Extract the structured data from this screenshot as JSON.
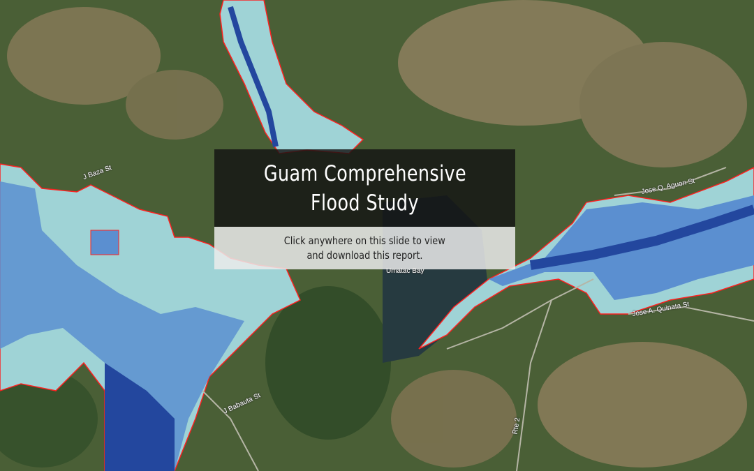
{
  "slide": {
    "title_lines": [
      "Guam Comprehensive",
      "Flood Study"
    ],
    "subtitle_lines": [
      "Click anywhere on this slide to view",
      "and download this report."
    ]
  },
  "map": {
    "labels": {
      "j_baza": "J Baza St",
      "j_babauta": "J Babauta St",
      "umatac_bay": "Umatac Bay",
      "jose_aguon": "Jose Q. Aguon St",
      "jose_quinata": "Jose A. Quinata St",
      "rte2": "Rte 2"
    },
    "colors": {
      "flood_shallow": "#9fd3d6",
      "flood_medium": "#5b8fd0",
      "flood_deep": "#23479e",
      "flood_boundary": "#ff2020",
      "terrain_green": "#3f5a2e",
      "terrain_brown": "#8a7a5a",
      "water": "#263a40"
    }
  }
}
